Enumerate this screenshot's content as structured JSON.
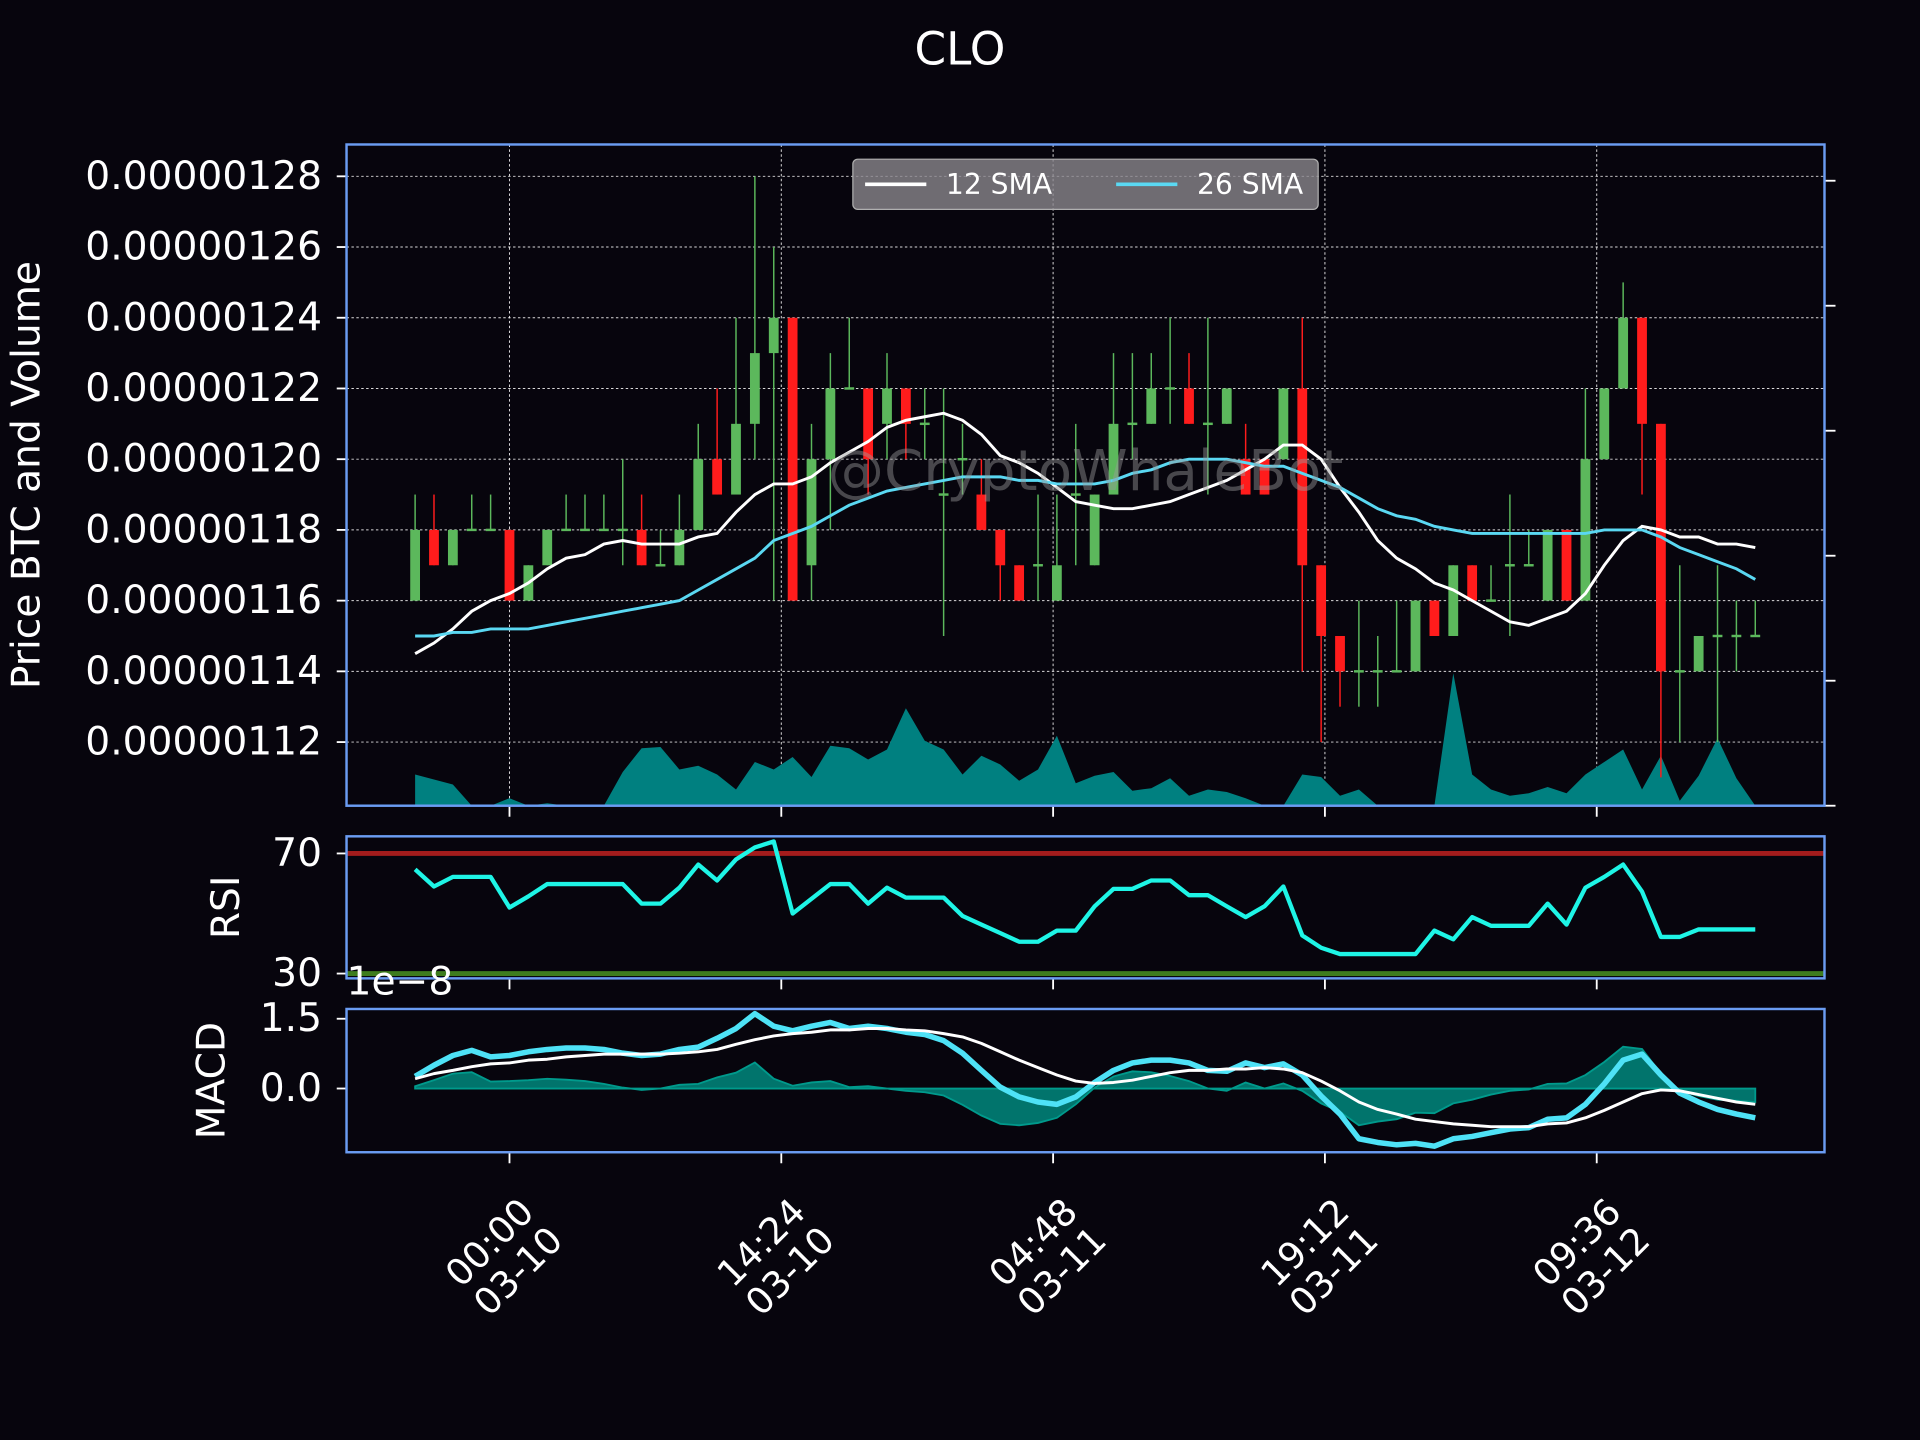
{
  "chart_data": [
    {
      "type": "candlestick",
      "title": "CLO",
      "ylabel": "Price BTC and Volume",
      "watermark": "@CryptoWhaleBot",
      "grid": true,
      "legend": "upper center",
      "up_color": "#5cb85c",
      "down_color": "#ff1c1c",
      "volume_color": "#008080",
      "x": [
        "03-09 19:00",
        "03-09 20:00",
        "03-09 21:00",
        "03-09 22:00",
        "03-09 23:00",
        "03-10 00:00",
        "03-10 01:00",
        "03-10 02:00",
        "03-10 03:00",
        "03-10 04:00",
        "03-10 05:00",
        "03-10 06:00",
        "03-10 07:00",
        "03-10 08:00",
        "03-10 09:00",
        "03-10 10:00",
        "03-10 11:00",
        "03-10 12:00",
        "03-10 13:00",
        "03-10 14:00",
        "03-10 15:00",
        "03-10 16:00",
        "03-10 17:00",
        "03-10 18:00",
        "03-10 19:00",
        "03-10 20:00",
        "03-10 21:00",
        "03-10 22:00",
        "03-10 23:00",
        "03-11 00:00",
        "03-11 01:00",
        "03-11 02:00",
        "03-11 03:00",
        "03-11 04:00",
        "03-11 05:00",
        "03-11 06:00",
        "03-11 07:00",
        "03-11 08:00",
        "03-11 09:00",
        "03-11 10:00",
        "03-11 11:00",
        "03-11 12:00",
        "03-11 13:00",
        "03-11 14:00",
        "03-11 15:00",
        "03-11 16:00",
        "03-11 17:00",
        "03-11 18:00",
        "03-11 19:00",
        "03-11 20:00",
        "03-11 21:00",
        "03-11 22:00",
        "03-11 23:00",
        "03-12 00:00",
        "03-12 01:00",
        "03-12 02:00",
        "03-12 03:00",
        "03-12 04:00",
        "03-12 05:00",
        "03-12 06:00",
        "03-12 07:00",
        "03-12 08:00",
        "03-12 09:00",
        "03-12 10:00",
        "03-12 11:00",
        "03-12 12:00",
        "03-12 13:00",
        "03-12 14:00",
        "03-12 15:00",
        "03-12 16:00",
        "03-12 17:00",
        "03-12 18:00"
      ],
      "open": [
        1.16e-06,
        1.18e-06,
        1.17e-06,
        1.18e-06,
        1.18e-06,
        1.18e-06,
        1.16e-06,
        1.17e-06,
        1.18e-06,
        1.18e-06,
        1.18e-06,
        1.18e-06,
        1.18e-06,
        1.17e-06,
        1.17e-06,
        1.18e-06,
        1.2e-06,
        1.19e-06,
        1.21e-06,
        1.23e-06,
        1.24e-06,
        1.17e-06,
        1.2e-06,
        1.22e-06,
        1.22e-06,
        1.21e-06,
        1.22e-06,
        1.21e-06,
        1.19e-06,
        1.2e-06,
        1.19e-06,
        1.18e-06,
        1.17e-06,
        1.17e-06,
        1.16e-06,
        1.19e-06,
        1.17e-06,
        1.19e-06,
        1.21e-06,
        1.21e-06,
        1.22e-06,
        1.22e-06,
        1.21e-06,
        1.21e-06,
        1.2e-06,
        1.2e-06,
        1.2e-06,
        1.22e-06,
        1.17e-06,
        1.15e-06,
        1.14e-06,
        1.14e-06,
        1.14e-06,
        1.14e-06,
        1.16e-06,
        1.15e-06,
        1.17e-06,
        1.16e-06,
        1.17e-06,
        1.17e-06,
        1.16e-06,
        1.18e-06,
        1.16e-06,
        1.2e-06,
        1.22e-06,
        1.24e-06,
        1.21e-06,
        1.14e-06,
        1.14e-06,
        1.15e-06,
        1.15e-06,
        1.15e-06
      ],
      "high": [
        1.19e-06,
        1.19e-06,
        1.18e-06,
        1.19e-06,
        1.19e-06,
        1.18e-06,
        1.17e-06,
        1.18e-06,
        1.19e-06,
        1.19e-06,
        1.19e-06,
        1.2e-06,
        1.19e-06,
        1.18e-06,
        1.19e-06,
        1.21e-06,
        1.22e-06,
        1.24e-06,
        1.28e-06,
        1.26e-06,
        1.24e-06,
        1.21e-06,
        1.23e-06,
        1.24e-06,
        1.22e-06,
        1.23e-06,
        1.22e-06,
        1.22e-06,
        1.22e-06,
        1.21e-06,
        1.2e-06,
        1.18e-06,
        1.17e-06,
        1.19e-06,
        1.19e-06,
        1.21e-06,
        1.19e-06,
        1.23e-06,
        1.23e-06,
        1.23e-06,
        1.24e-06,
        1.23e-06,
        1.24e-06,
        1.22e-06,
        1.21e-06,
        1.2e-06,
        1.22e-06,
        1.24e-06,
        1.17e-06,
        1.15e-06,
        1.16e-06,
        1.15e-06,
        1.16e-06,
        1.16e-06,
        1.16e-06,
        1.17e-06,
        1.17e-06,
        1.17e-06,
        1.19e-06,
        1.18e-06,
        1.18e-06,
        1.18e-06,
        1.22e-06,
        1.22e-06,
        1.25e-06,
        1.24e-06,
        1.21e-06,
        1.17e-06,
        1.15e-06,
        1.17e-06,
        1.16e-06,
        1.16e-06
      ],
      "low": [
        1.16e-06,
        1.17e-06,
        1.17e-06,
        1.18e-06,
        1.18e-06,
        1.16e-06,
        1.16e-06,
        1.17e-06,
        1.18e-06,
        1.18e-06,
        1.18e-06,
        1.17e-06,
        1.17e-06,
        1.17e-06,
        1.17e-06,
        1.18e-06,
        1.19e-06,
        1.19e-06,
        1.2e-06,
        1.16e-06,
        1.16e-06,
        1.16e-06,
        1.18e-06,
        1.22e-06,
        1.19e-06,
        1.2e-06,
        1.2e-06,
        1.2e-06,
        1.15e-06,
        1.19e-06,
        1.18e-06,
        1.16e-06,
        1.16e-06,
        1.16e-06,
        1.16e-06,
        1.17e-06,
        1.17e-06,
        1.19e-06,
        1.2e-06,
        1.21e-06,
        1.21e-06,
        1.21e-06,
        1.19e-06,
        1.21e-06,
        1.19e-06,
        1.19e-06,
        1.2e-06,
        1.14e-06,
        1.12e-06,
        1.13e-06,
        1.13e-06,
        1.13e-06,
        1.14e-06,
        1.14e-06,
        1.15e-06,
        1.15e-06,
        1.16e-06,
        1.16e-06,
        1.15e-06,
        1.17e-06,
        1.16e-06,
        1.16e-06,
        1.16e-06,
        1.2e-06,
        1.22e-06,
        1.19e-06,
        1.11e-06,
        1.12e-06,
        1.14e-06,
        1.12e-06,
        1.14e-06,
        1.15e-06
      ],
      "close": [
        1.18e-06,
        1.17e-06,
        1.18e-06,
        1.18e-06,
        1.18e-06,
        1.16e-06,
        1.17e-06,
        1.18e-06,
        1.18e-06,
        1.18e-06,
        1.18e-06,
        1.18e-06,
        1.17e-06,
        1.17e-06,
        1.18e-06,
        1.2e-06,
        1.19e-06,
        1.21e-06,
        1.23e-06,
        1.24e-06,
        1.16e-06,
        1.2e-06,
        1.22e-06,
        1.22e-06,
        1.2e-06,
        1.22e-06,
        1.21e-06,
        1.21e-06,
        1.19e-06,
        1.2e-06,
        1.18e-06,
        1.17e-06,
        1.16e-06,
        1.17e-06,
        1.17e-06,
        1.19e-06,
        1.19e-06,
        1.21e-06,
        1.21e-06,
        1.22e-06,
        1.22e-06,
        1.21e-06,
        1.21e-06,
        1.22e-06,
        1.19e-06,
        1.19e-06,
        1.22e-06,
        1.17e-06,
        1.15e-06,
        1.14e-06,
        1.14e-06,
        1.14e-06,
        1.14e-06,
        1.16e-06,
        1.15e-06,
        1.17e-06,
        1.16e-06,
        1.16e-06,
        1.17e-06,
        1.17e-06,
        1.18e-06,
        1.16e-06,
        1.2e-06,
        1.22e-06,
        1.24e-06,
        1.21e-06,
        1.14e-06,
        1.14e-06,
        1.15e-06,
        1.15e-06,
        1.15e-06,
        1.15e-06
      ],
      "volume": [
        0.25,
        0.21,
        0.17,
        0,
        0,
        0.06,
        0,
        0.02,
        0,
        0,
        0,
        0.27,
        0.46,
        0.47,
        0.29,
        0.32,
        0.25,
        0.13,
        0.35,
        0.29,
        0.39,
        0.23,
        0.48,
        0.46,
        0.37,
        0.45,
        0.78,
        0.52,
        0.45,
        0.25,
        0.4,
        0.33,
        0.2,
        0.29,
        0.56,
        0.18,
        0.24,
        0.27,
        0.12,
        0.14,
        0.22,
        0.08,
        0.13,
        0.11,
        0.06,
        0,
        0,
        0.25,
        0.23,
        0.08,
        0.13,
        0,
        0,
        0,
        0,
        1.06,
        0.25,
        0.13,
        0.08,
        0.1,
        0.15,
        0.1,
        0.25,
        0.35,
        0.45,
        0.13,
        0.4,
        0.04,
        0.24,
        0.54,
        0.22,
        0
      ],
      "series": [
        {
          "name": "12 SMA",
          "color": "#ffffff",
          "values": [
            1.145e-06,
            1.148e-06,
            1.152e-06,
            1.157e-06,
            1.16e-06,
            1.162e-06,
            1.165e-06,
            1.169e-06,
            1.172e-06,
            1.173e-06,
            1.176e-06,
            1.177e-06,
            1.176e-06,
            1.176e-06,
            1.176e-06,
            1.178e-06,
            1.179e-06,
            1.185e-06,
            1.19e-06,
            1.193e-06,
            1.193e-06,
            1.195e-06,
            1.199e-06,
            1.202e-06,
            1.205e-06,
            1.209e-06,
            1.211e-06,
            1.212e-06,
            1.213e-06,
            1.211e-06,
            1.207e-06,
            1.201e-06,
            1.199e-06,
            1.196e-06,
            1.192e-06,
            1.188e-06,
            1.187e-06,
            1.186e-06,
            1.186e-06,
            1.187e-06,
            1.188e-06,
            1.19e-06,
            1.192e-06,
            1.194e-06,
            1.197e-06,
            1.2e-06,
            1.204e-06,
            1.204e-06,
            1.2e-06,
            1.192e-06,
            1.185e-06,
            1.177e-06,
            1.172e-06,
            1.169e-06,
            1.165e-06,
            1.163e-06,
            1.16e-06,
            1.157e-06,
            1.154e-06,
            1.153e-06,
            1.155e-06,
            1.157e-06,
            1.162e-06,
            1.17e-06,
            1.177e-06,
            1.181e-06,
            1.18e-06,
            1.178e-06,
            1.178e-06,
            1.176e-06,
            1.176e-06,
            1.175e-06
          ]
        },
        {
          "name": "26 SMA",
          "color": "#5ad8f2",
          "values": [
            1.15e-06,
            1.15e-06,
            1.151e-06,
            1.151e-06,
            1.152e-06,
            1.152e-06,
            1.152e-06,
            1.153e-06,
            1.154e-06,
            1.155e-06,
            1.156e-06,
            1.157e-06,
            1.158e-06,
            1.159e-06,
            1.16e-06,
            1.163e-06,
            1.166e-06,
            1.169e-06,
            1.172e-06,
            1.177e-06,
            1.179e-06,
            1.181e-06,
            1.184e-06,
            1.187e-06,
            1.189e-06,
            1.191e-06,
            1.192e-06,
            1.193e-06,
            1.194e-06,
            1.195e-06,
            1.195e-06,
            1.195e-06,
            1.194e-06,
            1.194e-06,
            1.193e-06,
            1.193e-06,
            1.193e-06,
            1.194e-06,
            1.196e-06,
            1.197e-06,
            1.199e-06,
            1.2e-06,
            1.2e-06,
            1.2e-06,
            1.199e-06,
            1.198e-06,
            1.198e-06,
            1.196e-06,
            1.194e-06,
            1.192e-06,
            1.189e-06,
            1.186e-06,
            1.184e-06,
            1.183e-06,
            1.181e-06,
            1.18e-06,
            1.179e-06,
            1.179e-06,
            1.179e-06,
            1.179e-06,
            1.179e-06,
            1.179e-06,
            1.179e-06,
            1.18e-06,
            1.18e-06,
            1.18e-06,
            1.178e-06,
            1.175e-06,
            1.173e-06,
            1.171e-06,
            1.169e-06,
            1.166e-06
          ]
        }
      ],
      "xlim": [
        "03-09 15:22",
        "03-12 21:40"
      ],
      "xticks": [
        {
          "value": "03-10 00:00",
          "label": "00:00\n03-10"
        },
        {
          "value": "03-10 14:24",
          "label": "14:24\n03-10"
        },
        {
          "value": "03-11 04:48",
          "label": "04:48\n03-11"
        },
        {
          "value": "03-11 19:12",
          "label": "19:12\n03-11"
        },
        {
          "value": "03-12 09:36",
          "label": "09:36\n03-12"
        }
      ],
      "ylim": [
        1.102e-06,
        1.289e-06
      ],
      "yticks": [
        {
          "value": 1.12e-06,
          "label": "0.00000112"
        },
        {
          "value": 1.14e-06,
          "label": "0.00000114"
        },
        {
          "value": 1.16e-06,
          "label": "0.00000116"
        },
        {
          "value": 1.18e-06,
          "label": "0.00000118"
        },
        {
          "value": 1.2e-06,
          "label": "0.00000120"
        },
        {
          "value": 1.22e-06,
          "label": "0.00000122"
        },
        {
          "value": 1.24e-06,
          "label": "0.00000124"
        },
        {
          "value": 1.26e-06,
          "label": "0.00000126"
        },
        {
          "value": 1.28e-06,
          "label": "0.00000128"
        }
      ],
      "y2lim": [
        0,
        5.29
      ],
      "y2ticks": [
        0,
        1,
        2,
        3,
        4,
        5
      ]
    },
    {
      "type": "line",
      "ylabel": "RSI",
      "ylim": [
        28.4,
        75.7
      ],
      "yticks": [
        30,
        70
      ],
      "hlines": [
        {
          "value": 70,
          "color": "#a31c1c"
        },
        {
          "value": 30,
          "color": "#3e7c1e"
        }
      ],
      "series": [
        {
          "color": "#1ef5e6",
          "values": [
            64.7,
            59,
            62.2,
            62.2,
            62.2,
            52,
            55.7,
            59.8,
            59.8,
            59.8,
            59.8,
            59.8,
            53.3,
            53.3,
            58.6,
            66.3,
            61,
            68,
            72,
            74,
            50,
            54.9,
            59.8,
            59.8,
            53.3,
            58.6,
            55.3,
            55.3,
            55.3,
            49.2,
            46.3,
            43.5,
            40.6,
            40.6,
            44.3,
            44.3,
            52.4,
            58.2,
            58.2,
            61,
            61,
            56.1,
            56.1,
            52.4,
            48.8,
            52.4,
            59,
            42.7,
            38.6,
            36.5,
            36.5,
            36.5,
            36.5,
            36.5,
            44.3,
            41.4,
            48.8,
            45.9,
            45.9,
            45.9,
            53.3,
            46.3,
            58.6,
            62.2,
            66.3,
            57.3,
            42.2,
            42.2,
            44.7,
            44.7,
            44.7,
            44.7
          ]
        }
      ]
    },
    {
      "type": "macd",
      "ylabel": "MACD",
      "offset_label": "1e−8",
      "ylim": [
        -1.37,
        1.71
      ],
      "yticks": [
        {
          "value": 0,
          "label": "0.0"
        },
        1.5
      ],
      "histogram": {
        "color": "#009a8c",
        "values": [
          0.05,
          0.18,
          0.32,
          0.35,
          0.15,
          0.16,
          0.18,
          0.21,
          0.19,
          0.16,
          0.1,
          0.02,
          -0.03,
          0,
          0.08,
          0.1,
          0.24,
          0.34,
          0.56,
          0.21,
          0.06,
          0.13,
          0.16,
          0.03,
          0.05,
          0,
          -0.05,
          -0.08,
          -0.15,
          -0.35,
          -0.58,
          -0.76,
          -0.79,
          -0.74,
          -0.63,
          -0.34,
          0.02,
          0.26,
          0.37,
          0.35,
          0.27,
          0.16,
          0,
          -0.05,
          0.13,
          0,
          0.11,
          -0.05,
          -0.32,
          -0.5,
          -0.79,
          -0.71,
          -0.66,
          -0.52,
          -0.53,
          -0.32,
          -0.24,
          -0.13,
          -0.05,
          -0.02,
          0.1,
          0.11,
          0.29,
          0.57,
          0.9,
          0.85,
          0.32,
          -0.05,
          -0.16,
          -0.24,
          -0.26,
          -0.29
        ]
      },
      "series": [
        {
          "color": "#4ee2f6",
          "values": [
            0.26,
            0.5,
            0.71,
            0.82,
            0.68,
            0.71,
            0.79,
            0.84,
            0.87,
            0.87,
            0.84,
            0.76,
            0.71,
            0.74,
            0.84,
            0.89,
            1.08,
            1.29,
            1.61,
            1.34,
            1.24,
            1.34,
            1.42,
            1.29,
            1.34,
            1.29,
            1.21,
            1.16,
            1.03,
            0.76,
            0.39,
            0.03,
            -0.18,
            -0.29,
            -0.34,
            -0.18,
            0.13,
            0.39,
            0.55,
            0.61,
            0.61,
            0.55,
            0.39,
            0.37,
            0.55,
            0.45,
            0.53,
            0.29,
            -0.16,
            -0.55,
            -1.08,
            -1.16,
            -1.21,
            -1.18,
            -1.24,
            -1.08,
            -1.03,
            -0.95,
            -0.87,
            -0.84,
            -0.66,
            -0.63,
            -0.34,
            0.1,
            0.61,
            0.74,
            0.29,
            -0.1,
            -0.29,
            -0.45,
            -0.55,
            -0.63
          ]
        },
        {
          "color": "#ffffff",
          "values": [
            0.21,
            0.32,
            0.39,
            0.47,
            0.53,
            0.55,
            0.61,
            0.63,
            0.68,
            0.71,
            0.74,
            0.74,
            0.74,
            0.74,
            0.76,
            0.79,
            0.84,
            0.95,
            1.05,
            1.13,
            1.18,
            1.21,
            1.26,
            1.26,
            1.29,
            1.29,
            1.26,
            1.24,
            1.18,
            1.11,
            0.97,
            0.79,
            0.61,
            0.45,
            0.29,
            0.16,
            0.11,
            0.13,
            0.18,
            0.26,
            0.34,
            0.39,
            0.39,
            0.42,
            0.42,
            0.45,
            0.42,
            0.34,
            0.16,
            -0.05,
            -0.29,
            -0.45,
            -0.55,
            -0.66,
            -0.71,
            -0.76,
            -0.79,
            -0.82,
            -0.82,
            -0.82,
            -0.76,
            -0.74,
            -0.63,
            -0.47,
            -0.29,
            -0.11,
            -0.03,
            -0.05,
            -0.13,
            -0.21,
            -0.29,
            -0.34
          ]
        }
      ]
    }
  ]
}
